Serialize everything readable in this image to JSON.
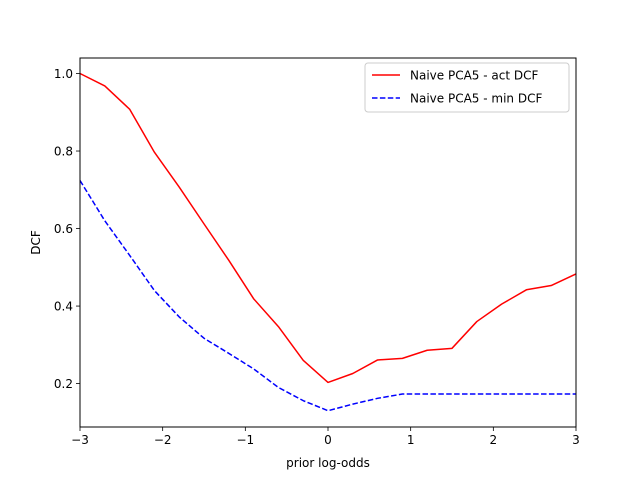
{
  "chart_data": {
    "type": "line",
    "xlabel": "prior log-odds",
    "ylabel": "DCF",
    "xlim": [
      -3,
      3
    ],
    "ylim": [
      0.088,
      1.04
    ],
    "x_ticks": [
      -3,
      -2,
      -1,
      0,
      1,
      2,
      3
    ],
    "x_tick_labels": [
      "−3",
      "−2",
      "−1",
      "0",
      "1",
      "2",
      "3"
    ],
    "y_ticks": [
      0.2,
      0.4,
      0.6,
      0.8,
      1.0
    ],
    "y_tick_labels": [
      "0.2",
      "0.4",
      "0.6",
      "0.8",
      "1.0"
    ],
    "grid": false,
    "legend_position": "upper right",
    "x": [
      -3.0,
      -2.7,
      -2.4,
      -2.1,
      -1.8,
      -1.5,
      -1.2,
      -0.9,
      -0.6,
      -0.3,
      0.0,
      0.3,
      0.6,
      0.9,
      1.2,
      1.5,
      1.8,
      2.1,
      2.4,
      2.7,
      3.0
    ],
    "series": [
      {
        "name": "Naive PCA5 - act DCF",
        "color": "#ff0000",
        "style": "solid",
        "values": [
          1.0,
          0.968,
          0.908,
          0.797,
          0.707,
          0.612,
          0.518,
          0.419,
          0.347,
          0.26,
          0.203,
          0.226,
          0.261,
          0.265,
          0.286,
          0.291,
          0.36,
          0.405,
          0.442,
          0.453,
          0.483
        ]
      },
      {
        "name": "Naive PCA5 - min DCF",
        "color": "#0000ff",
        "style": "dashed",
        "values": [
          0.724,
          0.62,
          0.531,
          0.44,
          0.372,
          0.317,
          0.278,
          0.238,
          0.19,
          0.156,
          0.13,
          0.147,
          0.162,
          0.173,
          0.173,
          0.173,
          0.173,
          0.173,
          0.173,
          0.173,
          0.173
        ]
      }
    ]
  }
}
